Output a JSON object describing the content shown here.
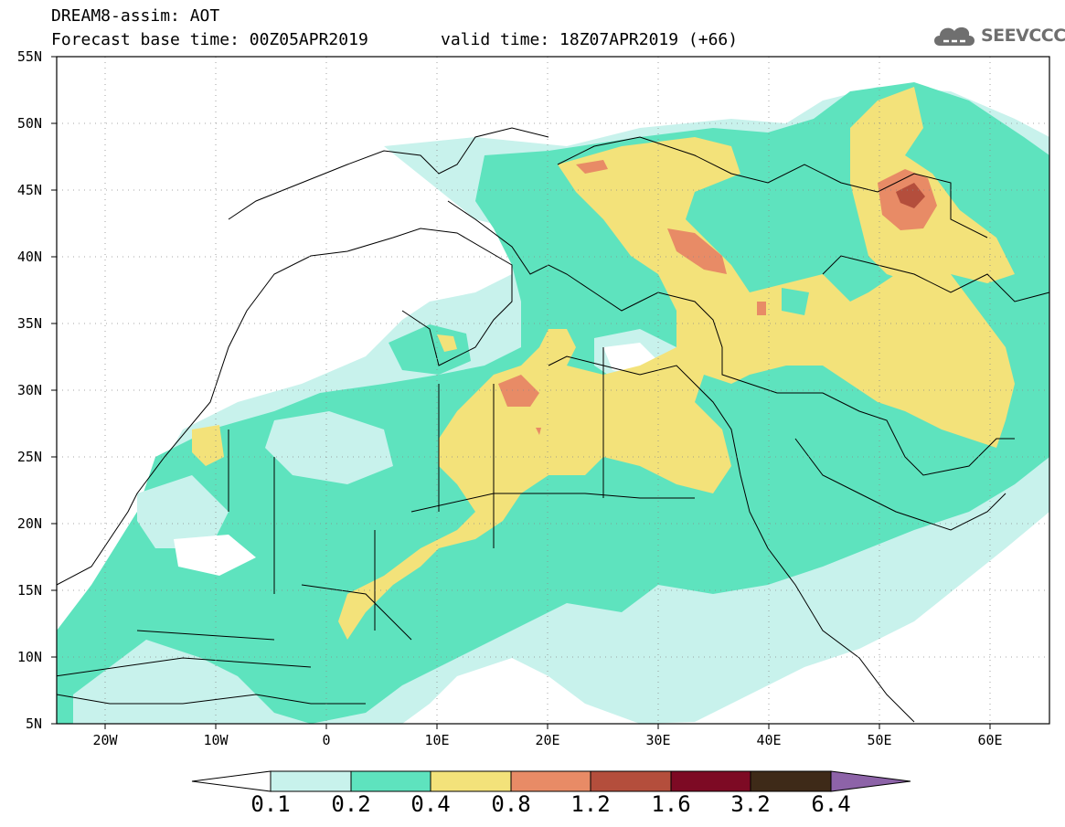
{
  "header": {
    "title": "DREAM8-assim: AOT",
    "base_time": "Forecast base time: 00Z05APR2019",
    "valid_time": "valid time: 18Z07APR2019 (+66)",
    "logo_text": "SEEVCCC"
  },
  "axes": {
    "lat_labels": [
      "55N",
      "50N",
      "45N",
      "40N",
      "35N",
      "30N",
      "25N",
      "20N",
      "15N",
      "10N",
      "5N"
    ],
    "lon_labels": [
      "20W",
      "10W",
      "0",
      "10E",
      "20E",
      "30E",
      "40E",
      "50E",
      "60E"
    ]
  },
  "colorbar": {
    "labels": [
      "0.1",
      "0.2",
      "0.4",
      "0.8",
      "1.2",
      "1.6",
      "3.2",
      "6.4"
    ],
    "colors": [
      "#ffffff",
      "#c8f2ec",
      "#5ee3be",
      "#f3e27a",
      "#e88b66",
      "#b44e3c",
      "#7d0a24",
      "#3e2a18",
      "#8d63a8"
    ]
  },
  "map": {
    "lat_range": [
      5,
      55
    ],
    "lon_range": [
      -25,
      65
    ],
    "colors": {
      "c1": "#c8f2ec",
      "c2": "#5ee3be",
      "c3": "#f3e27a",
      "c4": "#e88b66",
      "c5": "#b44e3c",
      "frame": "#000000",
      "grid": "#8a8a8a"
    }
  }
}
